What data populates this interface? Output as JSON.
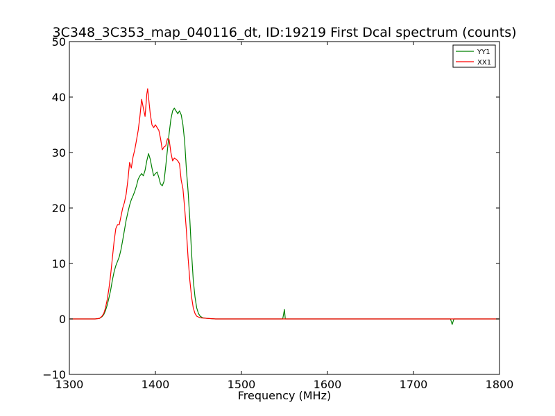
{
  "chart_data": {
    "type": "line",
    "title": "3C348_3C353_map_040116_dt, ID:19219 First Dcal spectrum (counts)",
    "xlabel": "Frequency (MHz)",
    "ylabel": "",
    "xlim": [
      1300,
      1800
    ],
    "ylim": [
      -10,
      50
    ],
    "xticks": [
      1300,
      1400,
      1500,
      1600,
      1700,
      1800
    ],
    "yticks": [
      -10,
      0,
      10,
      20,
      30,
      40,
      50
    ],
    "xtick_labels": [
      "1300",
      "1400",
      "1500",
      "1600",
      "1700",
      "1800"
    ],
    "ytick_labels": [
      "−10",
      "0",
      "10",
      "20",
      "30",
      "40",
      "50"
    ],
    "legend": {
      "placement": "top-right"
    },
    "grid": false,
    "series": [
      {
        "name": "YY1",
        "color": "#008000",
        "points": [
          [
            1300,
            0
          ],
          [
            1330,
            0
          ],
          [
            1335,
            0.1
          ],
          [
            1338,
            0.4
          ],
          [
            1340,
            0.8
          ],
          [
            1342,
            1.5
          ],
          [
            1344,
            2.5
          ],
          [
            1346,
            3.8
          ],
          [
            1348,
            5.2
          ],
          [
            1350,
            7
          ],
          [
            1352,
            8.5
          ],
          [
            1354,
            9.6
          ],
          [
            1356,
            10.4
          ],
          [
            1358,
            11.2
          ],
          [
            1360,
            12.5
          ],
          [
            1362,
            14.2
          ],
          [
            1364,
            16
          ],
          [
            1366,
            17.8
          ],
          [
            1368,
            19.2
          ],
          [
            1370,
            20.5
          ],
          [
            1372,
            21.5
          ],
          [
            1374,
            22.2
          ],
          [
            1376,
            23
          ],
          [
            1378,
            24
          ],
          [
            1380,
            25.2
          ],
          [
            1382,
            25.8
          ],
          [
            1384,
            26.2
          ],
          [
            1386,
            25.8
          ],
          [
            1388,
            26.8
          ],
          [
            1390,
            28.5
          ],
          [
            1392,
            29.8
          ],
          [
            1394,
            28.8
          ],
          [
            1396,
            27.2
          ],
          [
            1398,
            25.8
          ],
          [
            1400,
            26.2
          ],
          [
            1402,
            26.5
          ],
          [
            1404,
            25.5
          ],
          [
            1406,
            24.3
          ],
          [
            1408,
            24
          ],
          [
            1410,
            24.8
          ],
          [
            1412,
            27.5
          ],
          [
            1414,
            30.5
          ],
          [
            1416,
            33.5
          ],
          [
            1418,
            36
          ],
          [
            1420,
            37.5
          ],
          [
            1422,
            38
          ],
          [
            1424,
            37.5
          ],
          [
            1426,
            37
          ],
          [
            1428,
            37.5
          ],
          [
            1430,
            36.8
          ],
          [
            1432,
            35
          ],
          [
            1434,
            32
          ],
          [
            1436,
            27
          ],
          [
            1438,
            23
          ],
          [
            1440,
            18
          ],
          [
            1442,
            12
          ],
          [
            1444,
            7
          ],
          [
            1446,
            4
          ],
          [
            1448,
            2
          ],
          [
            1450,
            1
          ],
          [
            1452,
            0.5
          ],
          [
            1455,
            0.2
          ],
          [
            1460,
            0.1
          ],
          [
            1470,
            0
          ],
          [
            1548,
            0
          ],
          [
            1550,
            1.7
          ],
          [
            1551,
            0
          ],
          [
            1743,
            0
          ],
          [
            1745,
            -1
          ],
          [
            1747,
            0
          ],
          [
            1800,
            0
          ]
        ]
      },
      {
        "name": "XX1",
        "color": "#ff0000",
        "points": [
          [
            1300,
            0
          ],
          [
            1330,
            0
          ],
          [
            1335,
            0.1
          ],
          [
            1338,
            0.5
          ],
          [
            1340,
            1
          ],
          [
            1342,
            2
          ],
          [
            1344,
            3.5
          ],
          [
            1346,
            5.5
          ],
          [
            1348,
            8
          ],
          [
            1350,
            11
          ],
          [
            1352,
            14
          ],
          [
            1354,
            16.3
          ],
          [
            1356,
            17
          ],
          [
            1358,
            17
          ],
          [
            1360,
            18.5
          ],
          [
            1362,
            20
          ],
          [
            1364,
            21
          ],
          [
            1366,
            22.5
          ],
          [
            1368,
            25
          ],
          [
            1370,
            28.2
          ],
          [
            1372,
            27.2
          ],
          [
            1374,
            29.2
          ],
          [
            1376,
            30.5
          ],
          [
            1378,
            32.2
          ],
          [
            1380,
            34
          ],
          [
            1382,
            36.5
          ],
          [
            1384,
            39.6
          ],
          [
            1386,
            38
          ],
          [
            1388,
            36.5
          ],
          [
            1390,
            40.5
          ],
          [
            1391,
            41.5
          ],
          [
            1392,
            40
          ],
          [
            1394,
            37
          ],
          [
            1396,
            35
          ],
          [
            1398,
            34.5
          ],
          [
            1400,
            35
          ],
          [
            1402,
            34.5
          ],
          [
            1404,
            34
          ],
          [
            1406,
            32.5
          ],
          [
            1408,
            30.5
          ],
          [
            1410,
            31
          ],
          [
            1412,
            31.2
          ],
          [
            1414,
            32.5
          ],
          [
            1416,
            32.3
          ],
          [
            1418,
            30
          ],
          [
            1420,
            28.5
          ],
          [
            1422,
            29
          ],
          [
            1424,
            28.8
          ],
          [
            1426,
            28.5
          ],
          [
            1428,
            28
          ],
          [
            1430,
            25
          ],
          [
            1432,
            23.5
          ],
          [
            1434,
            20
          ],
          [
            1436,
            16
          ],
          [
            1438,
            11
          ],
          [
            1440,
            7
          ],
          [
            1442,
            4
          ],
          [
            1444,
            2
          ],
          [
            1446,
            1
          ],
          [
            1448,
            0.5
          ],
          [
            1452,
            0.2
          ],
          [
            1460,
            0.1
          ],
          [
            1470,
            0
          ],
          [
            1800,
            0
          ]
        ]
      }
    ]
  }
}
